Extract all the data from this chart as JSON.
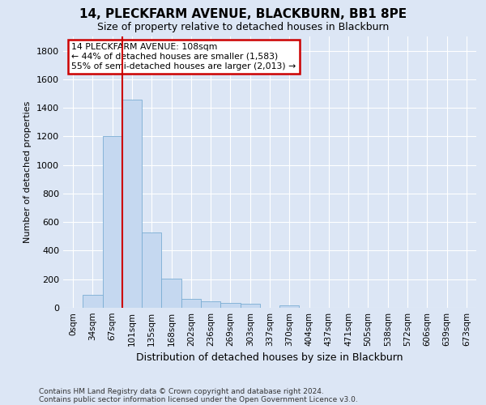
{
  "title1": "14, PLECKFARM AVENUE, BLACKBURN, BB1 8PE",
  "title2": "Size of property relative to detached houses in Blackburn",
  "xlabel": "Distribution of detached houses by size in Blackburn",
  "ylabel": "Number of detached properties",
  "footer1": "Contains HM Land Registry data © Crown copyright and database right 2024.",
  "footer2": "Contains public sector information licensed under the Open Government Licence v3.0.",
  "annotation_line1": "14 PLECKFARM AVENUE: 108sqm",
  "annotation_line2": "← 44% of detached houses are smaller (1,583)",
  "annotation_line3": "55% of semi-detached houses are larger (2,013) →",
  "bar_categories": [
    "0sqm",
    "34sqm",
    "67sqm",
    "101sqm",
    "135sqm",
    "168sqm",
    "202sqm",
    "236sqm",
    "269sqm",
    "303sqm",
    "337sqm",
    "370sqm",
    "404sqm",
    "437sqm",
    "471sqm",
    "505sqm",
    "538sqm",
    "572sqm",
    "606sqm",
    "639sqm",
    "673sqm"
  ],
  "bar_values": [
    0,
    90,
    1200,
    1460,
    530,
    205,
    65,
    48,
    35,
    28,
    0,
    15,
    0,
    0,
    0,
    0,
    0,
    0,
    0,
    0,
    0
  ],
  "bar_color": "#c5d8f0",
  "bar_edge_color": "#7aadd4",
  "red_line_x": 3.0,
  "ylim": [
    0,
    1900
  ],
  "yticks": [
    0,
    200,
    400,
    600,
    800,
    1000,
    1200,
    1400,
    1600,
    1800
  ],
  "bg_color": "#dce6f5",
  "plot_bg_color": "#dce6f5",
  "grid_color": "#ffffff",
  "annotation_box_color": "#ffffff",
  "annotation_box_edge": "#cc0000",
  "red_line_color": "#cc0000",
  "title1_fontsize": 11,
  "title2_fontsize": 9,
  "ylabel_fontsize": 8,
  "xlabel_fontsize": 9,
  "footer_fontsize": 6.5,
  "tick_fontsize": 8,
  "xtick_fontsize": 7.5
}
